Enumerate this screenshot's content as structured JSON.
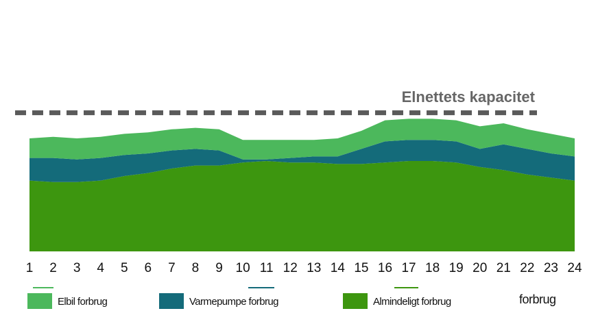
{
  "chart_data": {
    "type": "stacked_area",
    "categories": [
      "1",
      "2",
      "3",
      "4",
      "5",
      "6",
      "7",
      "8",
      "9",
      "10",
      "11",
      "12",
      "13",
      "14",
      "15",
      "16",
      "17",
      "18",
      "19",
      "20",
      "21",
      "22",
      "23",
      "24"
    ],
    "series": [
      {
        "name": "Elbil forbrug",
        "color": "#4cb85c",
        "values": [
          13,
          14,
          14,
          14,
          14,
          14,
          14,
          14,
          14,
          13,
          13,
          12,
          11,
          12,
          12,
          14,
          14,
          14,
          14,
          15,
          14,
          13,
          13,
          12
        ]
      },
      {
        "name": "Varmepumpe forbrug",
        "color": "#146b7a",
        "values": [
          15,
          16,
          15,
          15,
          14,
          13,
          12,
          11,
          10,
          2,
          1,
          3,
          4,
          5,
          10,
          14,
          14,
          14,
          14,
          12,
          17,
          17,
          16,
          16
        ]
      },
      {
        "name": "Almindeligt forbrug",
        "color": "#3d960f",
        "values": [
          47,
          46,
          46,
          47,
          50,
          52,
          55,
          57,
          57,
          59,
          60,
          59,
          59,
          58,
          58,
          59,
          60,
          60,
          59,
          56,
          54,
          51,
          49,
          47
        ]
      }
    ],
    "ylim": [
      0,
      100
    ],
    "capacity": {
      "label": "Elnettets kapacitet",
      "value": 92,
      "color": "#5a5a5a"
    },
    "annotation": "forbrug"
  }
}
